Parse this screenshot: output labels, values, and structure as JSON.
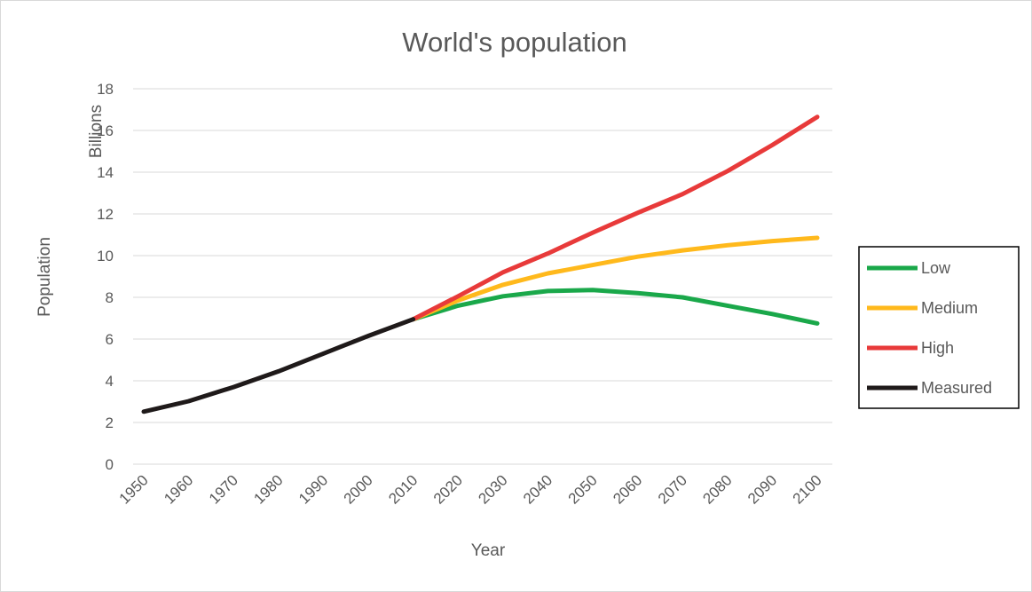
{
  "chart_data": {
    "type": "line",
    "title": "World's population",
    "xlabel": "Year",
    "ylabel": "Population",
    "unit_label": "Billions",
    "x": [
      1950,
      1960,
      1970,
      1980,
      1990,
      2000,
      2010,
      2020,
      2030,
      2040,
      2050,
      2060,
      2070,
      2080,
      2090,
      2100
    ],
    "xticks": [
      "1950",
      "1960",
      "1970",
      "1980",
      "1990",
      "2000",
      "2010",
      "2020",
      "2030",
      "2040",
      "2050",
      "2060",
      "2070",
      "2080",
      "2090",
      "2100"
    ],
    "ylim": [
      0,
      18
    ],
    "yticks": [
      0,
      2,
      4,
      6,
      8,
      10,
      12,
      14,
      16,
      18
    ],
    "grid": "horizontal",
    "legend_position": "right",
    "series": [
      {
        "name": "Low",
        "color": "#1aa84a",
        "x": [
          2010,
          2020,
          2030,
          2040,
          2050,
          2060,
          2070,
          2080,
          2090,
          2100
        ],
        "values": [
          6.95,
          7.6,
          8.05,
          8.3,
          8.35,
          8.2,
          8.0,
          7.6,
          7.2,
          6.75
        ]
      },
      {
        "name": "Medium",
        "color": "#ffb91c",
        "x": [
          2010,
          2020,
          2030,
          2040,
          2050,
          2060,
          2070,
          2080,
          2090,
          2100
        ],
        "values": [
          6.95,
          7.85,
          8.6,
          9.15,
          9.55,
          9.95,
          10.25,
          10.5,
          10.7,
          10.85
        ]
      },
      {
        "name": "High",
        "color": "#e83a3a",
        "x": [
          2010,
          2020,
          2030,
          2040,
          2050,
          2060,
          2070,
          2080,
          2090,
          2100
        ],
        "values": [
          6.95,
          8.05,
          9.2,
          10.1,
          11.1,
          12.05,
          12.95,
          14.05,
          15.3,
          16.65
        ]
      },
      {
        "name": "Measured",
        "color": "#1f1a1a",
        "x": [
          1950,
          1960,
          1970,
          1980,
          1990,
          2000,
          2010
        ],
        "values": [
          2.52,
          3.02,
          3.7,
          4.45,
          5.3,
          6.15,
          6.95
        ]
      }
    ]
  }
}
